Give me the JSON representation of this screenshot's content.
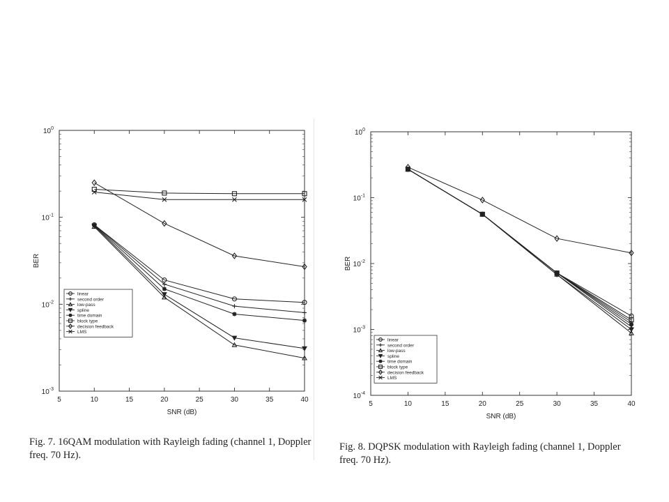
{
  "chart_data": [
    {
      "type": "line",
      "title": "",
      "xlabel": "SNR (dB)",
      "ylabel": "BER",
      "xlim": [
        5,
        40
      ],
      "ylim": [
        0.001,
        1
      ],
      "yscale": "log",
      "xticks": [
        "5",
        "10",
        "15",
        "20",
        "25",
        "30",
        "35",
        "40"
      ],
      "yticks": [
        {
          "v": 1,
          "mant": "10",
          "exp": "0"
        },
        {
          "v": 0.1,
          "mant": "10",
          "exp": "-1"
        },
        {
          "v": 0.01,
          "mant": "10",
          "exp": "-2"
        },
        {
          "v": 0.001,
          "mant": "10",
          "exp": "-3"
        }
      ],
      "legend_position": "bottom-left",
      "grid": false,
      "x": [
        10,
        20,
        30,
        40
      ],
      "series": [
        {
          "name": "linear",
          "marker": "circle",
          "values": [
            0.082,
            0.019,
            0.0115,
            0.0105
          ]
        },
        {
          "name": "second order",
          "marker": "plus",
          "values": [
            0.082,
            0.017,
            0.0095,
            0.008
          ]
        },
        {
          "name": "low-pass",
          "marker": "triangle-up",
          "values": [
            0.078,
            0.012,
            0.0034,
            0.0024
          ]
        },
        {
          "name": "spline",
          "marker": "triangle-down",
          "values": [
            0.08,
            0.013,
            0.0041,
            0.0031
          ]
        },
        {
          "name": "time domain",
          "marker": "star",
          "values": [
            0.081,
            0.015,
            0.0077,
            0.0065
          ]
        },
        {
          "name": "block type",
          "marker": "square",
          "values": [
            0.21,
            0.19,
            0.187,
            0.187
          ]
        },
        {
          "name": "decision feedback",
          "marker": "diamond",
          "values": [
            0.25,
            0.085,
            0.036,
            0.027
          ]
        },
        {
          "name": "LMS",
          "marker": "x",
          "values": [
            0.195,
            0.16,
            0.16,
            0.16
          ]
        }
      ],
      "caption": "Fig. 7.   16QAM modulation with Rayleigh fading (channel 1, Doppler freq. 70 Hz)."
    },
    {
      "type": "line",
      "title": "",
      "xlabel": "SNR (dB)",
      "ylabel": "BER",
      "xlim": [
        5,
        40
      ],
      "ylim": [
        0.0001,
        1
      ],
      "yscale": "log",
      "xticks": [
        "5",
        "10",
        "15",
        "20",
        "25",
        "30",
        "35",
        "40"
      ],
      "yticks": [
        {
          "v": 1,
          "mant": "10",
          "exp": "0"
        },
        {
          "v": 0.1,
          "mant": "10",
          "exp": "-1"
        },
        {
          "v": 0.01,
          "mant": "10",
          "exp": "-2"
        },
        {
          "v": 0.001,
          "mant": "10",
          "exp": "-3"
        },
        {
          "v": 0.0001,
          "mant": "10",
          "exp": "-4"
        }
      ],
      "legend_position": "bottom-left",
      "grid": false,
      "x": [
        10,
        20,
        30,
        40
      ],
      "series": [
        {
          "name": "linear",
          "marker": "circle",
          "values": [
            0.27,
            0.056,
            0.0072,
            0.0016
          ]
        },
        {
          "name": "second order",
          "marker": "plus",
          "values": [
            0.27,
            0.056,
            0.0072,
            0.0013
          ]
        },
        {
          "name": "low-pass",
          "marker": "triangle-up",
          "values": [
            0.27,
            0.056,
            0.0068,
            0.00088
          ]
        },
        {
          "name": "spline",
          "marker": "triangle-down",
          "values": [
            0.27,
            0.056,
            0.0068,
            0.001
          ]
        },
        {
          "name": "time domain",
          "marker": "star",
          "values": [
            0.27,
            0.056,
            0.0072,
            0.0012
          ]
        },
        {
          "name": "block type",
          "marker": "square",
          "values": [
            0.27,
            0.056,
            0.0072,
            0.0014
          ]
        },
        {
          "name": "decision feedback",
          "marker": "diamond",
          "values": [
            0.29,
            0.092,
            0.024,
            0.0145
          ]
        },
        {
          "name": "LMS",
          "marker": "x",
          "values": [
            0.27,
            0.056,
            0.0072,
            0.0011
          ]
        }
      ],
      "caption": "Fig. 8.   DQPSK modulation with Rayleigh fading (channel 1, Doppler freq. 70 Hz)."
    }
  ]
}
